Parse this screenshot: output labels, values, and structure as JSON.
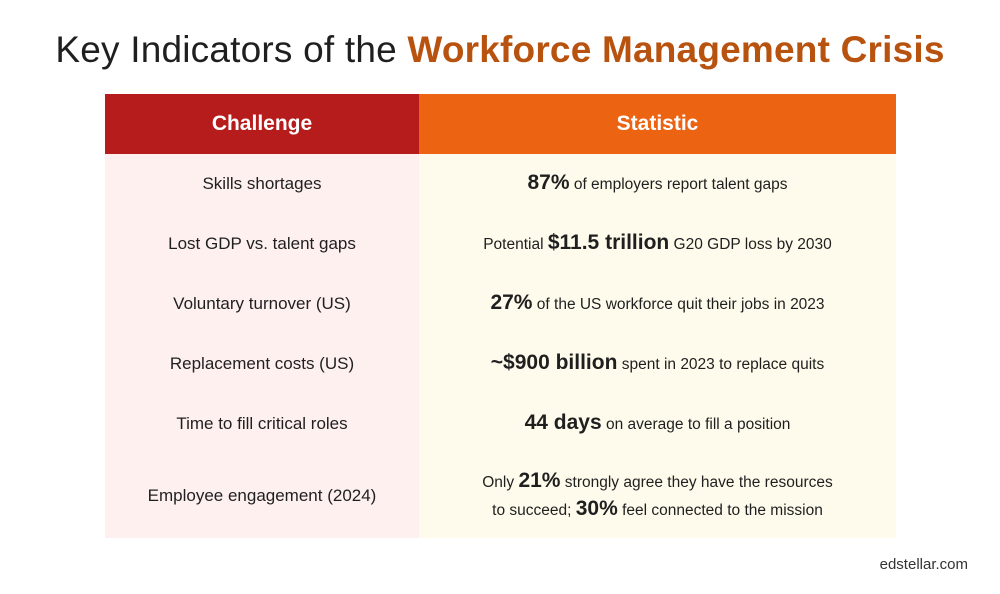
{
  "title": {
    "plain": "Key Indicators of the",
    "accent": "Workforce Management Crisis"
  },
  "colors": {
    "accent_text": "#b8520f",
    "header_challenge_bg": "#b71c1c",
    "header_statistic_bg": "#ec6312",
    "challenge_cell_bg": "#fdf0ef",
    "statistic_cell_bg": "#fffbec"
  },
  "table": {
    "headers": {
      "challenge": "Challenge",
      "statistic": "Statistic"
    },
    "rows": [
      {
        "challenge": "Skills shortages",
        "stat_pre": "",
        "stat_big": "87%",
        "stat_post": "of employers report talent gaps"
      },
      {
        "challenge": "Lost GDP vs. talent gaps",
        "stat_pre": "Potential",
        "stat_big": "$11.5 trillion",
        "stat_post": "G20 GDP loss by 2030"
      },
      {
        "challenge": "Voluntary turnover (US)",
        "stat_pre": "",
        "stat_big": "27%",
        "stat_post": "of the US workforce quit their jobs in 2023"
      },
      {
        "challenge": "Replacement costs (US)",
        "stat_pre": "",
        "stat_big": "~$900 billion",
        "stat_post": "spent in 2023 to replace quits"
      },
      {
        "challenge": "Time to fill critical roles",
        "stat_pre": "",
        "stat_big": "44 days",
        "stat_post": "on average to fill a position"
      },
      {
        "challenge": "Employee engagement (2024)",
        "line1_pre": "Only",
        "line1_big": "21%",
        "line1_post": "strongly agree they have the resources",
        "line2_pre": "to succeed;",
        "line2_big": "30%",
        "line2_post": "feel connected to the mission"
      }
    ]
  },
  "footer": {
    "source": "edstellar.com"
  }
}
